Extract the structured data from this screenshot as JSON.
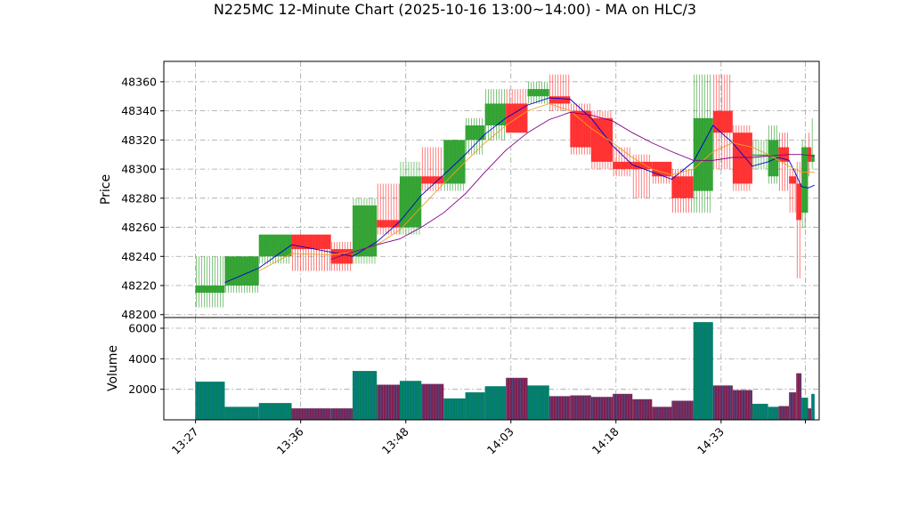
{
  "chart_data": {
    "type": "candlestick",
    "title": "N225MC 12-Minute Chart (2025-10-16 13:00~14:00) - MA on HLC/3",
    "price_panel": {
      "ylabel": "Price",
      "ylim": [
        48198,
        48374
      ],
      "yticks": [
        48200,
        48220,
        48240,
        48260,
        48280,
        48300,
        48320,
        48340,
        48360
      ]
    },
    "volume_panel": {
      "ylabel": "Volume",
      "ylim": [
        0,
        6700
      ],
      "yticks": [
        2000,
        4000,
        6000
      ],
      "up_color": "#008060",
      "down_color": "#802050",
      "edge_color": "#1f77b4"
    },
    "x_time_labels": [
      "13:27",
      "13:36",
      "13:48",
      "14:03",
      "14:18",
      "14:33"
    ],
    "xlim": [
      0,
      1
    ],
    "xtick_fracs": [
      0.0484,
      0.2088,
      0.3692,
      0.5296,
      0.6899,
      0.8503,
      0.9789
    ],
    "colors": {
      "up": "#2ca02c",
      "down": "#ff2a2a",
      "ma_short": "#0000cc",
      "ma_mid": "#f0a020",
      "ma_long": "#800080",
      "grid": "#a0a0a0"
    },
    "bars": [
      {
        "x0": 0.048,
        "x1": 0.093,
        "o": 48215,
        "h": 48240,
        "l": 48205,
        "c": 48220,
        "v": 2500
      },
      {
        "x0": 0.093,
        "x1": 0.145,
        "o": 48220,
        "h": 48240,
        "l": 48215,
        "c": 48240,
        "v": 850
      },
      {
        "x0": 0.145,
        "x1": 0.195,
        "o": 48240,
        "h": 48255,
        "l": 48235,
        "c": 48255,
        "v": 1100
      },
      {
        "x0": 0.195,
        "x1": 0.255,
        "o": 48255,
        "h": 48255,
        "l": 48230,
        "c": 48245,
        "v": 750
      },
      {
        "x0": 0.255,
        "x1": 0.288,
        "o": 48245,
        "h": 48250,
        "l": 48230,
        "c": 48235,
        "v": 750
      },
      {
        "x0": 0.288,
        "x1": 0.325,
        "o": 48240,
        "h": 48280,
        "l": 48235,
        "c": 48275,
        "v": 3200
      },
      {
        "x0": 0.325,
        "x1": 0.36,
        "o": 48265,
        "h": 48290,
        "l": 48255,
        "c": 48260,
        "v": 2300
      },
      {
        "x0": 0.36,
        "x1": 0.393,
        "o": 48260,
        "h": 48305,
        "l": 48255,
        "c": 48295,
        "v": 2550
      },
      {
        "x0": 0.393,
        "x1": 0.427,
        "o": 48295,
        "h": 48315,
        "l": 48285,
        "c": 48290,
        "v": 2350
      },
      {
        "x0": 0.427,
        "x1": 0.46,
        "o": 48290,
        "h": 48320,
        "l": 48285,
        "c": 48320,
        "v": 1400
      },
      {
        "x0": 0.46,
        "x1": 0.49,
        "o": 48320,
        "h": 48335,
        "l": 48310,
        "c": 48330,
        "v": 1800
      },
      {
        "x0": 0.49,
        "x1": 0.522,
        "o": 48330,
        "h": 48355,
        "l": 48320,
        "c": 48345,
        "v": 2200
      },
      {
        "x0": 0.522,
        "x1": 0.555,
        "o": 48345,
        "h": 48355,
        "l": 48325,
        "c": 48325,
        "v": 2750
      },
      {
        "x0": 0.555,
        "x1": 0.588,
        "o": 48350,
        "h": 48360,
        "l": 48345,
        "c": 48355,
        "v": 2250
      },
      {
        "x0": 0.588,
        "x1": 0.62,
        "o": 48350,
        "h": 48365,
        "l": 48340,
        "c": 48345,
        "v": 1550
      },
      {
        "x0": 0.62,
        "x1": 0.652,
        "o": 48340,
        "h": 48345,
        "l": 48310,
        "c": 48315,
        "v": 1600
      },
      {
        "x0": 0.652,
        "x1": 0.685,
        "o": 48335,
        "h": 48340,
        "l": 48300,
        "c": 48305,
        "v": 1500
      },
      {
        "x0": 0.685,
        "x1": 0.715,
        "o": 48305,
        "h": 48315,
        "l": 48295,
        "c": 48300,
        "v": 1700
      },
      {
        "x0": 0.715,
        "x1": 0.745,
        "o": 48305,
        "h": 48310,
        "l": 48280,
        "c": 48300,
        "v": 1350
      },
      {
        "x0": 0.745,
        "x1": 0.775,
        "o": 48305,
        "h": 48305,
        "l": 48290,
        "c": 48295,
        "v": 850
      },
      {
        "x0": 0.775,
        "x1": 0.808,
        "o": 48295,
        "h": 48300,
        "l": 48270,
        "c": 48280,
        "v": 1250
      },
      {
        "x0": 0.808,
        "x1": 0.838,
        "o": 48285,
        "h": 48365,
        "l": 48270,
        "c": 48335,
        "v": 6400
      },
      {
        "x0": 0.838,
        "x1": 0.868,
        "o": 48340,
        "h": 48365,
        "l": 48300,
        "c": 48325,
        "v": 2250
      },
      {
        "x0": 0.868,
        "x1": 0.898,
        "o": 48325,
        "h": 48330,
        "l": 48285,
        "c": 48290,
        "v": 1950
      },
      {
        "x0": 0.898,
        "x1": 0.922,
        "o": 48310,
        "h": 48320,
        "l": 48300,
        "c": 48310,
        "v": 1050
      },
      {
        "x0": 0.922,
        "x1": 0.938,
        "o": 48295,
        "h": 48330,
        "l": 48290,
        "c": 48320,
        "v": 850
      },
      {
        "x0": 0.938,
        "x1": 0.954,
        "o": 48315,
        "h": 48325,
        "l": 48285,
        "c": 48305,
        "v": 900
      },
      {
        "x0": 0.954,
        "x1": 0.965,
        "o": 48295,
        "h": 48300,
        "l": 48270,
        "c": 48290,
        "v": 1800
      },
      {
        "x0": 0.965,
        "x1": 0.973,
        "o": 48290,
        "h": 48305,
        "l": 48225,
        "c": 48265,
        "v": 3050
      },
      {
        "x0": 0.973,
        "x1": 0.983,
        "o": 48270,
        "h": 48320,
        "l": 48260,
        "c": 48315,
        "v": 1450
      },
      {
        "x0": 0.983,
        "x1": 0.988,
        "o": 48315,
        "h": 48325,
        "l": 48295,
        "c": 48305,
        "v": 750
      },
      {
        "x0": 0.988,
        "x1": 0.993,
        "o": 48305,
        "h": 48335,
        "l": 48300,
        "c": 48310,
        "v": 1700
      }
    ],
    "ma_series": [
      {
        "key": "ma_short",
        "x": [
          0.093,
          0.145,
          0.195,
          0.255,
          0.288,
          0.325,
          0.36,
          0.393,
          0.427,
          0.46,
          0.49,
          0.522,
          0.555,
          0.588,
          0.62,
          0.652,
          0.685,
          0.715,
          0.745,
          0.775,
          0.808,
          0.838,
          0.868,
          0.898,
          0.922,
          0.938,
          0.954,
          0.965,
          0.973,
          0.983,
          0.993
        ],
        "y": [
          48222,
          48232,
          48248,
          48243,
          48240,
          48250,
          48264,
          48282,
          48296,
          48310,
          48324,
          48335,
          48344,
          48349,
          48348,
          48335,
          48316,
          48303,
          48298,
          48293,
          48305,
          48330,
          48318,
          48302,
          48305,
          48308,
          48306,
          48296,
          48288,
          48287,
          48289
        ]
      },
      {
        "key": "ma_mid",
        "x": [
          0.145,
          0.195,
          0.255,
          0.288,
          0.325,
          0.36,
          0.393,
          0.427,
          0.46,
          0.49,
          0.522,
          0.555,
          0.588,
          0.62,
          0.652,
          0.685,
          0.715,
          0.745,
          0.775,
          0.808,
          0.838,
          0.868,
          0.898,
          0.922,
          0.954,
          0.973,
          0.993
        ],
        "y": [
          48230,
          48242,
          48241,
          48243,
          48248,
          48258,
          48274,
          48290,
          48305,
          48318,
          48330,
          48340,
          48345,
          48340,
          48328,
          48318,
          48308,
          48300,
          48296,
          48300,
          48312,
          48318,
          48315,
          48310,
          48302,
          48298,
          48298
        ]
      },
      {
        "key": "ma_long",
        "x": [
          0.255,
          0.288,
          0.325,
          0.36,
          0.393,
          0.427,
          0.46,
          0.49,
          0.522,
          0.555,
          0.588,
          0.62,
          0.652,
          0.685,
          0.715,
          0.745,
          0.775,
          0.808,
          0.838,
          0.868,
          0.898,
          0.922,
          0.954,
          0.973,
          0.993
        ],
        "y": [
          48238,
          48243,
          48248,
          48252,
          48260,
          48270,
          48283,
          48298,
          48313,
          48325,
          48334,
          48339,
          48337,
          48333,
          48325,
          48318,
          48312,
          48306,
          48306,
          48308,
          48308,
          48309,
          48310,
          48310,
          48309
        ]
      }
    ]
  }
}
